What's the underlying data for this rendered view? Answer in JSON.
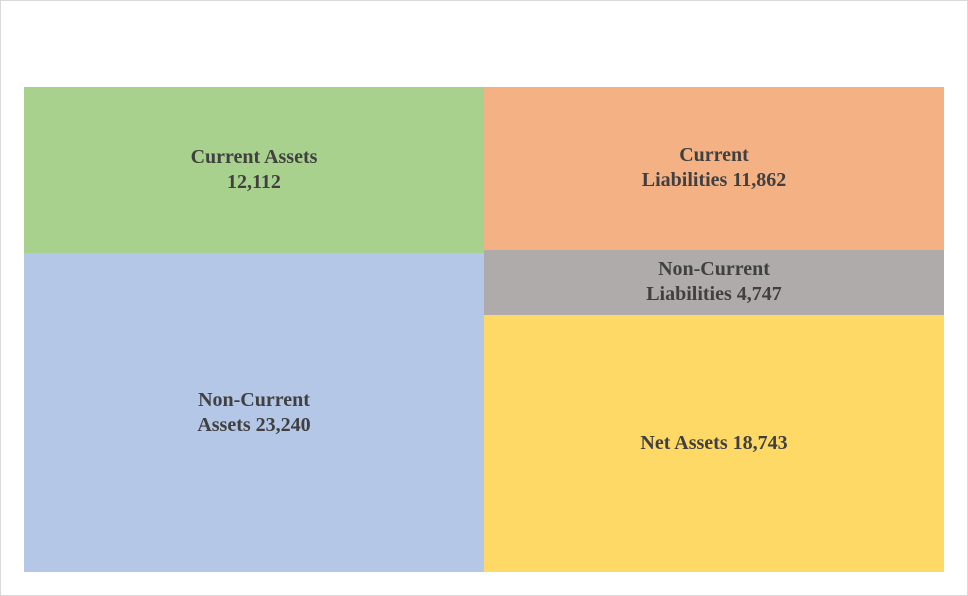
{
  "chart_data": {
    "type": "treemap",
    "groups": [
      {
        "name": "",
        "items": [
          {
            "label": "Current Assets\n12,112",
            "category": "Current Assets",
            "value": 12112,
            "color": "#a9d18e"
          },
          {
            "label": "Non-Current\nAssets 23,240",
            "category": "Non-Current Assets",
            "value": 23240,
            "color": "#b4c7e7"
          }
        ]
      },
      {
        "name": "",
        "items": [
          {
            "label": "Current\nLiabilities 11,862",
            "category": "Current Liabilities",
            "value": 11862,
            "color": "#f4b183"
          },
          {
            "label": "Non-Current\nLiabilities 4,747",
            "category": "Non-Current Liabilities",
            "value": 4747,
            "color": "#afabab"
          },
          {
            "label": "Net Assets 18,743",
            "category": "Net Assets",
            "value": 18743,
            "color": "#ffd966"
          }
        ]
      }
    ]
  }
}
